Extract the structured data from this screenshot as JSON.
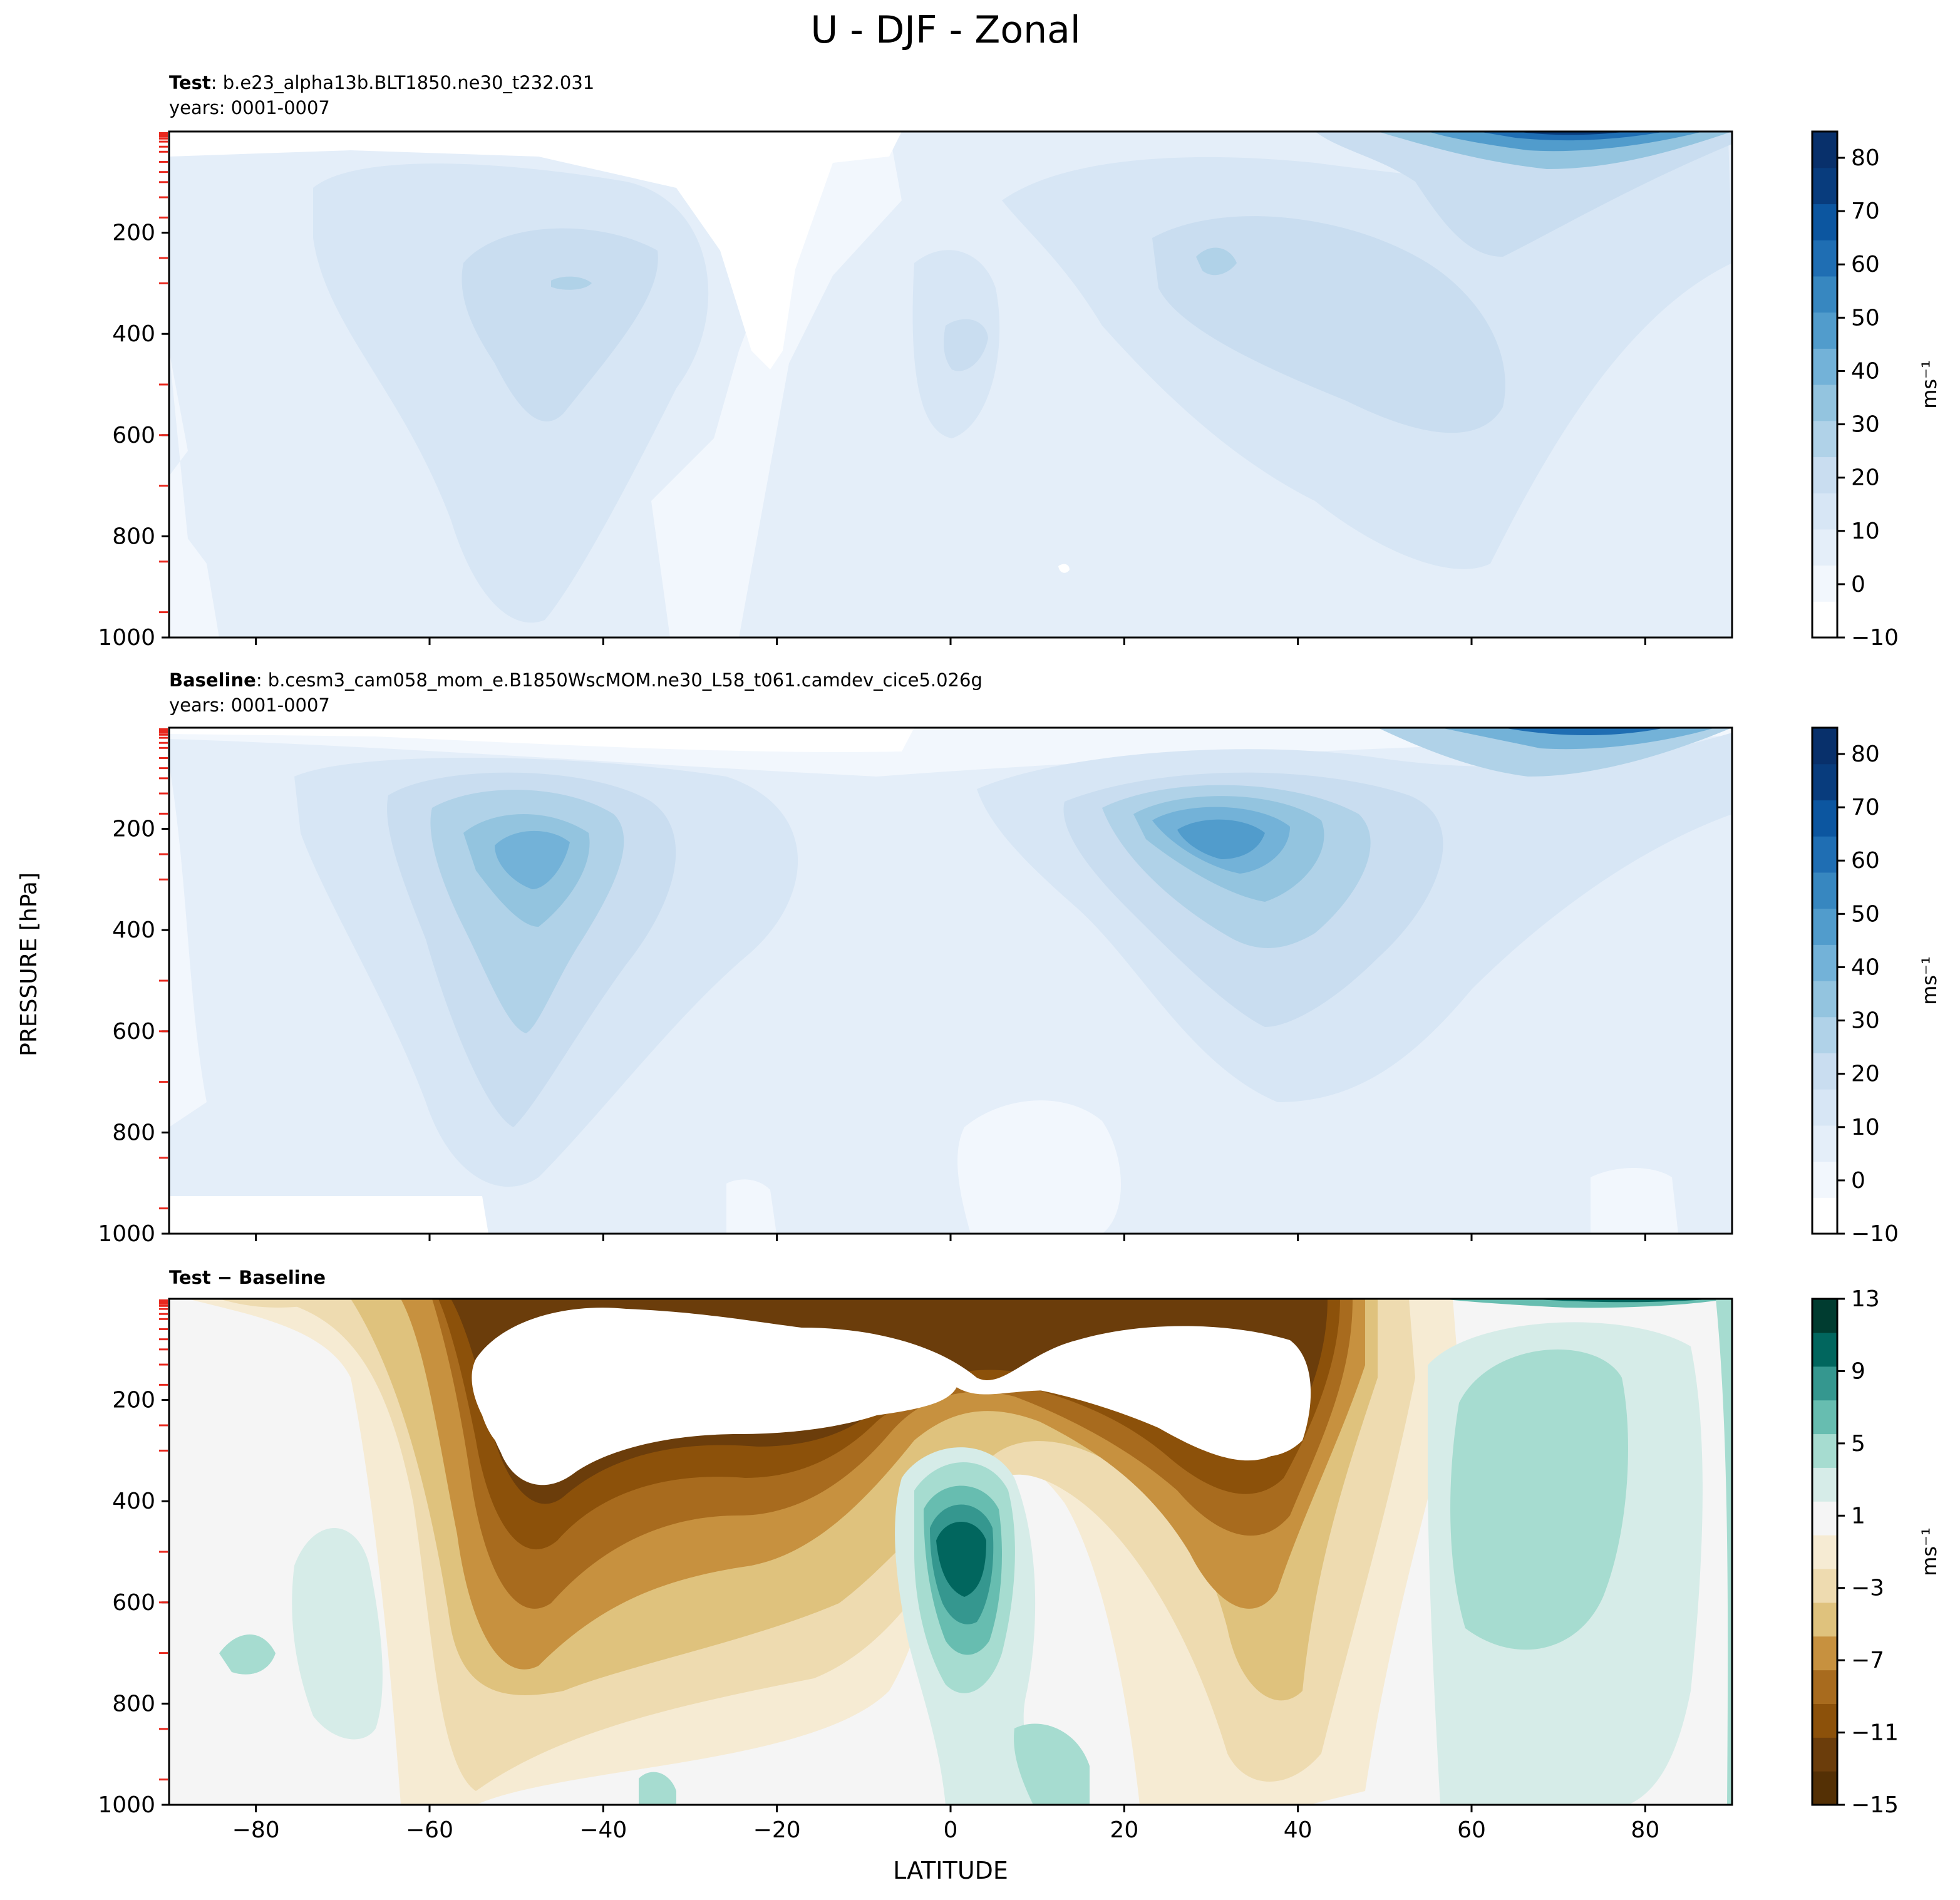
{
  "figure": {
    "title": "U - DJF - Zonal",
    "ylabel": "PRESSURE [hPa]",
    "xlabel": "LATITUDE"
  },
  "chart_data": [
    {
      "type": "contour",
      "panel": "test",
      "title_bold": "Test",
      "title_rest": ": b.e23_alpha13b.BLT1850.ne30_t232.031",
      "years": "years: 0001-0007",
      "xlim": [
        -90,
        90
      ],
      "ylim": [
        1000,
        0
      ],
      "xticks": [
        -80,
        -60,
        -40,
        -20,
        0,
        20,
        40,
        60,
        80
      ],
      "yticks": [
        200,
        400,
        600,
        800,
        1000
      ],
      "colorbar": {
        "label": "ms⁻¹",
        "ticks": [
          "80",
          "70",
          "60",
          "50",
          "40",
          "30",
          "20",
          "10",
          "0",
          "−10"
        ],
        "colors": [
          "#ffffff",
          "#f2f7fd",
          "#e4eef9",
          "#d7e6f5",
          "#c9ddf0",
          "#b0d2e8",
          "#93c4df",
          "#73b2d8",
          "#519ccc",
          "#3787c0",
          "#1f6eb3",
          "#0c56a0",
          "#083c7d",
          "#08306b"
        ]
      },
      "features": [
        {
          "label": "southern jet core",
          "lat": -45,
          "pressure": 300,
          "value": 22
        },
        {
          "label": "northern jet",
          "lat": 30,
          "pressure": 250,
          "value": 22
        },
        {
          "label": "equatorial westerly",
          "lat": 2,
          "pressure": 450,
          "value": 20
        },
        {
          "label": "polar night jet",
          "lat": 65,
          "pressure": 10,
          "value": 80
        }
      ]
    },
    {
      "type": "contour",
      "panel": "baseline",
      "title_bold": "Baseline",
      "title_rest": ": b.cesm3_cam058_mom_e.B1850WscMOM.ne30_L58_t061.camdev_cice5.026g",
      "years": "years: 0001-0007",
      "xlim": [
        -90,
        90
      ],
      "ylim": [
        1000,
        0
      ],
      "xticks": [
        -80,
        -60,
        -40,
        -20,
        0,
        20,
        40,
        60,
        80
      ],
      "yticks": [
        200,
        400,
        600,
        800,
        1000
      ],
      "colorbar": {
        "label": "ms⁻¹",
        "ticks": [
          "80",
          "70",
          "60",
          "50",
          "40",
          "30",
          "20",
          "10",
          "0",
          "−10"
        ],
        "colors": [
          "#ffffff",
          "#f2f7fd",
          "#e4eef9",
          "#d7e6f5",
          "#c9ddf0",
          "#b0d2e8",
          "#93c4df",
          "#73b2d8",
          "#519ccc",
          "#3787c0",
          "#1f6eb3",
          "#0c56a0",
          "#083c7d",
          "#08306b"
        ]
      },
      "features": [
        {
          "label": "southern jet core",
          "lat": -45,
          "pressure": 250,
          "value": 38
        },
        {
          "label": "northern jet core",
          "lat": 30,
          "pressure": 220,
          "value": 42
        },
        {
          "label": "polar night jet",
          "lat": 65,
          "pressure": 10,
          "value": 80
        }
      ]
    },
    {
      "type": "contour",
      "panel": "difference",
      "title_bold": "Test − Baseline",
      "xlim": [
        -90,
        90
      ],
      "ylim": [
        1000,
        0
      ],
      "xticks": [
        -80,
        -60,
        -40,
        -20,
        0,
        20,
        40,
        60,
        80
      ],
      "yticks": [
        200,
        400,
        600,
        800,
        1000
      ],
      "colorbar": {
        "label": "ms⁻¹",
        "ticks": [
          "13",
          "9",
          "5",
          "1",
          "−3",
          "−7",
          "−11",
          "−15"
        ],
        "colors": [
          "#543005",
          "#6b3d0b",
          "#8c510a",
          "#a86b1e",
          "#c7913f",
          "#dfc27d",
          "#eedbb0",
          "#f6ebd3",
          "#f5f5f5",
          "#d6ece8",
          "#a6dcd0",
          "#67bdb0",
          "#35978f",
          "#01665e",
          "#003c30"
        ]
      },
      "features": [
        {
          "label": "southern negative bias",
          "lat": -45,
          "pressure": 150,
          "value": -15
        },
        {
          "label": "northern negative bias",
          "lat": 30,
          "pressure": 150,
          "value": -15
        },
        {
          "label": "equatorial positive bias",
          "lat": 2,
          "pressure": 480,
          "value": 13
        },
        {
          "label": "northern mid-latitude positive",
          "lat": 65,
          "pressure": 450,
          "value": 4
        }
      ]
    }
  ]
}
